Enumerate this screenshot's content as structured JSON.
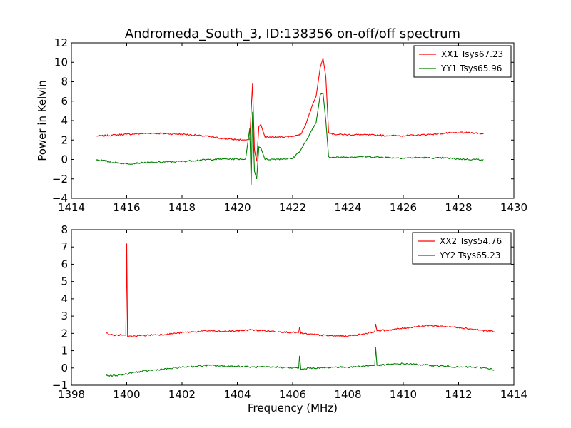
{
  "figure": {
    "title": "Andromeda_South_3, ID:138356 on-off/off spectrum",
    "ylabel": "Power in Kelvin",
    "xlabel": "Frequency (MHz)"
  },
  "colors": {
    "xx": "#ff0000",
    "yy": "#008000",
    "axes": "#000000",
    "background": "#ffffff"
  },
  "chart_data": [
    {
      "type": "line",
      "title": "Andromeda_South_3, ID:138356 on-off/off spectrum",
      "xlabel": "",
      "ylabel": "Power in Kelvin",
      "xlim": [
        1414,
        1430
      ],
      "ylim": [
        -4,
        12
      ],
      "xticks": [
        "1414",
        "1416",
        "1418",
        "1420",
        "1422",
        "1424",
        "1426",
        "1428",
        "1430"
      ],
      "yticks": [
        "−4",
        "−2",
        "0",
        "2",
        "4",
        "6",
        "8",
        "10",
        "12"
      ],
      "legend_position": "top-right",
      "grid": false,
      "series": [
        {
          "name": "XX1 Tsys67.23",
          "color": "#ff0000",
          "x": [
            1414.9,
            1415.5,
            1416.0,
            1416.5,
            1417.0,
            1417.5,
            1418.0,
            1418.5,
            1419.0,
            1419.5,
            1420.0,
            1420.3,
            1420.45,
            1420.55,
            1420.62,
            1420.7,
            1420.78,
            1420.85,
            1421.0,
            1421.5,
            1422.0,
            1422.3,
            1422.5,
            1422.7,
            1422.85,
            1423.0,
            1423.1,
            1423.2,
            1423.3,
            1423.5,
            1424.0,
            1424.5,
            1425.0,
            1425.5,
            1426.0,
            1426.5,
            1427.0,
            1427.5,
            1428.0,
            1428.5,
            1428.9
          ],
          "values": [
            2.4,
            2.5,
            2.6,
            2.65,
            2.7,
            2.65,
            2.6,
            2.5,
            2.35,
            2.15,
            2.05,
            2.0,
            2.1,
            7.8,
            1.0,
            -0.2,
            3.4,
            3.6,
            2.3,
            2.3,
            2.4,
            2.6,
            3.8,
            5.5,
            6.5,
            9.5,
            10.4,
            8.5,
            2.8,
            2.6,
            2.55,
            2.55,
            2.5,
            2.45,
            2.45,
            2.5,
            2.6,
            2.7,
            2.75,
            2.75,
            2.65
          ]
        },
        {
          "name": "YY1 Tsys65.96",
          "color": "#008000",
          "x": [
            1414.9,
            1415.5,
            1416.0,
            1416.5,
            1417.0,
            1417.5,
            1418.0,
            1418.5,
            1419.0,
            1419.5,
            1420.0,
            1420.3,
            1420.45,
            1420.5,
            1420.55,
            1420.62,
            1420.7,
            1420.78,
            1420.85,
            1421.0,
            1421.5,
            1422.0,
            1422.3,
            1422.6,
            1422.85,
            1423.0,
            1423.1,
            1423.2,
            1423.3,
            1423.5,
            1424.0,
            1424.5,
            1425.0,
            1425.5,
            1426.0,
            1426.5,
            1427.0,
            1427.5,
            1428.0,
            1428.5,
            1428.9
          ],
          "values": [
            0.0,
            -0.3,
            -0.45,
            -0.35,
            -0.3,
            -0.25,
            -0.2,
            -0.1,
            0.0,
            0.05,
            0.05,
            0.05,
            3.2,
            -2.6,
            4.9,
            -1.2,
            -2.0,
            1.3,
            1.2,
            0.0,
            0.05,
            0.1,
            1.0,
            2.5,
            3.8,
            6.7,
            6.8,
            4.0,
            0.3,
            0.2,
            0.25,
            0.3,
            0.25,
            0.2,
            0.15,
            0.2,
            0.15,
            0.15,
            0.05,
            0.0,
            0.0
          ]
        }
      ]
    },
    {
      "type": "line",
      "title": "",
      "xlabel": "Frequency (MHz)",
      "ylabel": "",
      "xlim": [
        1398,
        1414
      ],
      "ylim": [
        -1,
        8
      ],
      "xticks": [
        "1398",
        "1400",
        "1402",
        "1404",
        "1406",
        "1408",
        "1410",
        "1412",
        "1414"
      ],
      "yticks": [
        "−1",
        "0",
        "1",
        "2",
        "3",
        "4",
        "5",
        "6",
        "7",
        "8"
      ],
      "legend_position": "top-right",
      "grid": false,
      "series": [
        {
          "name": "XX2 Tsys54.76",
          "color": "#ff0000",
          "x": [
            1399.25,
            1399.5,
            1399.8,
            1399.97,
            1400.0,
            1400.03,
            1400.3,
            1400.8,
            1401.5,
            1402.0,
            1402.5,
            1403.0,
            1403.5,
            1404.0,
            1404.5,
            1405.0,
            1405.5,
            1406.0,
            1406.22,
            1406.25,
            1406.3,
            1406.6,
            1407.0,
            1407.5,
            1408.0,
            1408.5,
            1408.97,
            1409.0,
            1409.05,
            1409.5,
            1410.0,
            1410.5,
            1411.0,
            1411.5,
            1412.0,
            1412.5,
            1413.0,
            1413.3
          ],
          "values": [
            2.0,
            1.9,
            1.9,
            1.9,
            7.2,
            1.8,
            1.85,
            1.9,
            1.95,
            2.05,
            2.1,
            2.15,
            2.1,
            2.15,
            2.2,
            2.15,
            2.1,
            2.05,
            2.05,
            2.35,
            2.0,
            1.95,
            1.9,
            1.85,
            1.85,
            1.95,
            2.1,
            2.55,
            2.15,
            2.2,
            2.3,
            2.4,
            2.45,
            2.4,
            2.35,
            2.25,
            2.15,
            2.1
          ]
        },
        {
          "name": "YY2 Tsys65.23",
          "color": "#008000",
          "x": [
            1399.25,
            1399.5,
            1399.8,
            1400.0,
            1400.3,
            1400.8,
            1401.5,
            1402.0,
            1402.5,
            1403.0,
            1403.5,
            1404.0,
            1404.5,
            1405.0,
            1405.5,
            1406.0,
            1406.22,
            1406.25,
            1406.3,
            1406.6,
            1407.0,
            1407.5,
            1408.0,
            1408.5,
            1408.97,
            1409.0,
            1409.05,
            1409.5,
            1410.0,
            1410.5,
            1411.0,
            1411.5,
            1412.0,
            1412.5,
            1413.0,
            1413.3
          ],
          "values": [
            -0.45,
            -0.45,
            -0.4,
            -0.35,
            -0.25,
            -0.15,
            -0.05,
            0.05,
            0.1,
            0.15,
            0.1,
            0.1,
            0.05,
            0.05,
            0.05,
            0.0,
            0.0,
            0.7,
            -0.1,
            0.0,
            0.0,
            0.05,
            0.05,
            0.1,
            0.15,
            1.2,
            0.15,
            0.2,
            0.25,
            0.2,
            0.15,
            0.1,
            0.05,
            0.05,
            0.0,
            -0.1
          ]
        }
      ]
    }
  ]
}
